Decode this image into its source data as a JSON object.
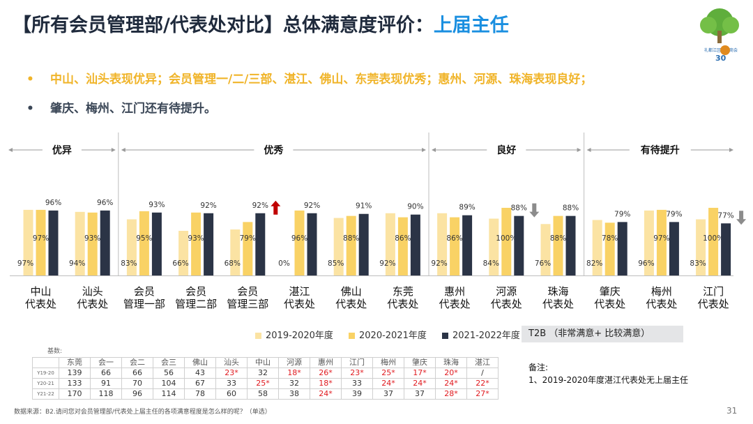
{
  "header": {
    "title_main": "【所有会员管理部/代表处对比】总体满意度评价：",
    "title_highlight": "上届主任"
  },
  "logo": {
    "text": "礼都江区商会商会",
    "mark": "30"
  },
  "bullets": [
    {
      "dot": "•",
      "text": "中山、汕头表现优异；会员管理一/二/三部、湛江、佛山、东莞表现优秀；惠州、河源、珠海表现良好；"
    },
    {
      "dot": "•",
      "text": "肇庆、梅州、江门还有待提升。"
    }
  ],
  "colors": {
    "y1920": "#fbe3a3",
    "y2021": "#f9d265",
    "y2122": "#2b3446",
    "up_arrow": "#c00000",
    "down_arrow": "#8c8c8c"
  },
  "chart_data": {
    "type": "bar",
    "groups": [
      {
        "label": "优异",
        "count": 2
      },
      {
        "label": "优秀",
        "count": 6
      },
      {
        "label": "良好",
        "count": 3
      },
      {
        "label": "有待提升",
        "count": 3
      }
    ],
    "categories": [
      [
        "中山",
        "代表处"
      ],
      [
        "汕头",
        "代表处"
      ],
      [
        "会员",
        "管理一部"
      ],
      [
        "会员",
        "管理二部"
      ],
      [
        "会员",
        "管理三部"
      ],
      [
        "湛江",
        "代表处"
      ],
      [
        "佛山",
        "代表处"
      ],
      [
        "东莞",
        "代表处"
      ],
      [
        "惠州",
        "代表处"
      ],
      [
        "河源",
        "代表处"
      ],
      [
        "珠海",
        "代表处"
      ],
      [
        "肇庆",
        "代表处"
      ],
      [
        "梅州",
        "代表处"
      ],
      [
        "江门",
        "代表处"
      ]
    ],
    "series": [
      {
        "name": "2019-2020年度",
        "values": [
          97,
          94,
          83,
          66,
          68,
          0,
          85,
          92,
          92,
          84,
          76,
          82,
          96,
          83
        ]
      },
      {
        "name": "2020-2021年度",
        "values": [
          97,
          93,
          95,
          93,
          79,
          96,
          88,
          86,
          86,
          100,
          88,
          78,
          97,
          100
        ]
      },
      {
        "name": "2021-2022年度",
        "values": [
          96,
          96,
          93,
          92,
          92,
          92,
          91,
          90,
          89,
          88,
          88,
          79,
          79,
          77
        ]
      }
    ],
    "arrows": [
      {
        "category_index": 4,
        "direction": "up"
      },
      {
        "category_index": 9,
        "direction": "down"
      },
      {
        "category_index": 13,
        "direction": "down"
      }
    ],
    "ylim": [
      0,
      100
    ]
  },
  "t2b_label": "T2B （非常满意+ 比较满意）",
  "base_table": {
    "label": "基数:",
    "columns": [
      "东莞",
      "会一",
      "会二",
      "会三",
      "佛山",
      "汕头",
      "中山",
      "河源",
      "惠州",
      "江门",
      "梅州",
      "肇庆",
      "珠海",
      "湛江"
    ],
    "rows": [
      {
        "label": "Y19-20",
        "values": [
          "139",
          "66",
          "66",
          "56",
          "43",
          "23*",
          "32",
          "18*",
          "26*",
          "23*",
          "25*",
          "17*",
          "20*",
          "/"
        ]
      },
      {
        "label": "Y20-21",
        "values": [
          "133",
          "91",
          "70",
          "104",
          "67",
          "33",
          "25*",
          "32",
          "18*",
          "33",
          "24*",
          "24*",
          "24*",
          "22*"
        ]
      },
      {
        "label": "Y21-22",
        "values": [
          "170",
          "118",
          "96",
          "114",
          "78",
          "60",
          "58",
          "38",
          "24*",
          "39",
          "37",
          "37",
          "28*",
          "27*"
        ]
      }
    ]
  },
  "notes": {
    "title": "备注:",
    "line1": "1、2019-2020年度湛江代表处无上届主任"
  },
  "source": "数据来源：B2.请问您对会员管理部/代表处上届主任的各项满意程度是怎么样的呢？（单选）",
  "page_number": "31"
}
